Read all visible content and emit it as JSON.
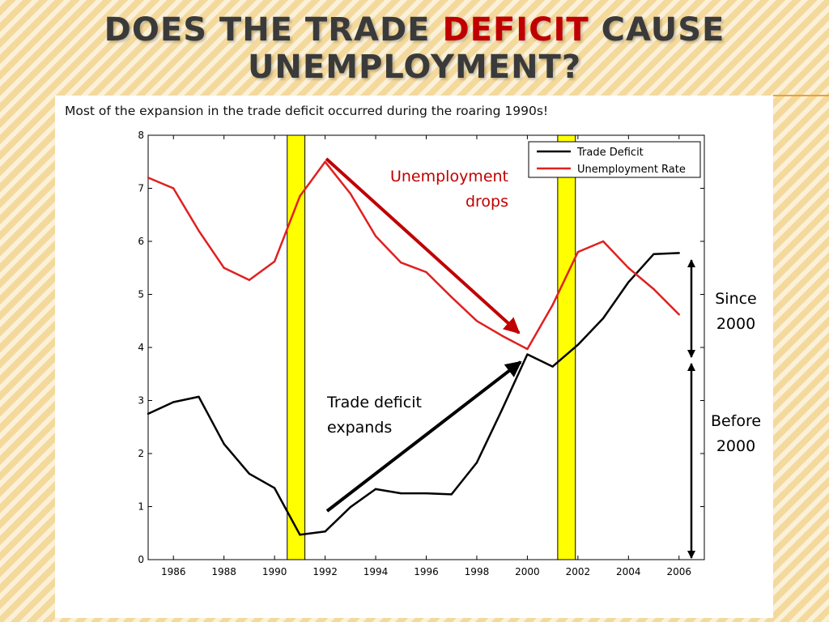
{
  "slide": {
    "title_before": "DOES THE TRADE ",
    "title_accent": "DEFICIT",
    "title_after": " CAUSE",
    "title_line2": "UNEMPLOYMENT?",
    "subtitle": "Most of the expansion in the trade deficit occurred during the roaring 1990s!"
  },
  "colors": {
    "accent": "#c00000",
    "unemployment": "#e02020",
    "trade": "#000000",
    "recession": "#ffff00"
  },
  "chart_data": {
    "type": "line",
    "title": "",
    "xlabel": "",
    "ylabel": "",
    "xlim": [
      1985,
      2007
    ],
    "ylim": [
      0,
      8
    ],
    "xticks": [
      "1986",
      "1988",
      "1990",
      "1992",
      "1994",
      "1996",
      "1998",
      "2000",
      "2002",
      "2004",
      "2006"
    ],
    "yticks": [
      "0",
      "1",
      "2",
      "3",
      "4",
      "5",
      "6",
      "7",
      "8"
    ],
    "grid": false,
    "legend_position": "top-right",
    "recessions": [
      [
        1990.5,
        1991.2
      ],
      [
        2001.2,
        2001.9
      ]
    ],
    "series": [
      {
        "name": "Trade Deficit",
        "color": "#000000",
        "x": [
          1985,
          1986,
          1987,
          1988,
          1989,
          1990,
          1991,
          1992,
          1993,
          1994,
          1995,
          1996,
          1997,
          1998,
          1999,
          2000,
          2001,
          2002,
          2003,
          2004,
          2005,
          2006
        ],
        "y": [
          2.75,
          2.97,
          3.07,
          2.18,
          1.62,
          1.35,
          0.47,
          0.53,
          0.99,
          1.33,
          1.25,
          1.25,
          1.23,
          1.83,
          2.83,
          3.87,
          3.64,
          4.05,
          4.55,
          5.23,
          5.76,
          5.78
        ]
      },
      {
        "name": "Unemployment Rate",
        "color": "#e02020",
        "x": [
          1985,
          1986,
          1987,
          1988,
          1989,
          1990,
          1991,
          1992,
          1993,
          1994,
          1995,
          1996,
          1997,
          1998,
          1999,
          2000,
          2001,
          2002,
          2003,
          2004,
          2005,
          2006
        ],
        "y": [
          7.2,
          7.0,
          6.2,
          5.5,
          5.27,
          5.62,
          6.85,
          7.5,
          6.9,
          6.1,
          5.6,
          5.42,
          4.95,
          4.5,
          4.22,
          3.97,
          4.8,
          5.8,
          6.0,
          5.5,
          5.1,
          4.62
        ]
      }
    ],
    "annotations": {
      "unemployment_drops": [
        "Unemployment",
        "drops"
      ],
      "trade_expands": [
        "Trade deficit",
        "expands"
      ],
      "since_2000": [
        "Since",
        "2000"
      ],
      "before_2000": [
        "Before",
        "2000"
      ]
    }
  }
}
